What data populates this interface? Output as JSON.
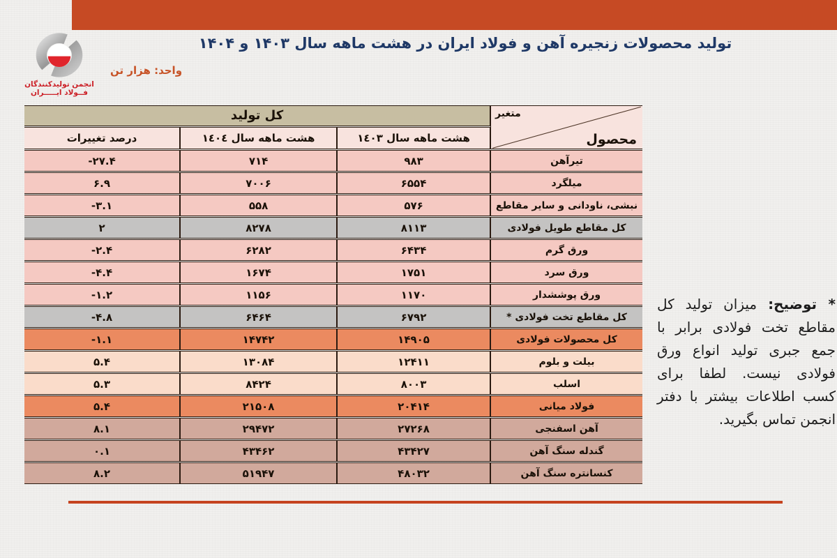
{
  "header": {
    "title": "تولید محصولات زنجیره آهن و فولاد ایران در هشت ماهه سال ۱۴۰۳ و ۱۴۰۴",
    "unit": "واحد: هزار تن"
  },
  "logo": {
    "line1": "انجمن تولیدکنندگان",
    "line2": "فــولاد ایـــــران"
  },
  "table": {
    "corner": {
      "top_label": "متغیر",
      "bottom_label": "محصول"
    },
    "group_header": "کل تولید",
    "columns": {
      "y1403": "هشت ماهه سال ١٤٠٣",
      "y1404": "هشت ماهه سال ١٤٠٤",
      "pct": "درصد تغییرات"
    },
    "rows": [
      {
        "product": "تیرآهن",
        "y1403": "۹۸۳",
        "y1404": "۷۱۴",
        "pct": "-۲۷.۴",
        "style": "pink"
      },
      {
        "product": "میلگرد",
        "y1403": "۶۵۵۴",
        "y1404": "۷۰۰۶",
        "pct": "۶.۹",
        "style": "pink"
      },
      {
        "product": "نبشی، ناودانی و سایر مقاطع",
        "y1403": "۵۷۶",
        "y1404": "۵۵۸",
        "pct": "-۳.۱",
        "style": "pink"
      },
      {
        "product": "کل مقاطع طویل فولادی",
        "y1403": "۸۱۱۳",
        "y1404": "۸۲۷۸",
        "pct": "۲",
        "style": "gray"
      },
      {
        "product": "ورق گرم",
        "y1403": "۶۴۳۴",
        "y1404": "۶۲۸۲",
        "pct": "-۲.۴",
        "style": "pink"
      },
      {
        "product": "ورق سرد",
        "y1403": "۱۷۵۱",
        "y1404": "۱۶۷۴",
        "pct": "-۴.۴",
        "style": "pink"
      },
      {
        "product": "ورق پوششدار",
        "y1403": "۱۱۷۰",
        "y1404": "۱۱۵۶",
        "pct": "-۱.۲",
        "style": "pink"
      },
      {
        "product": "کل مقاطع تخت فولادی *",
        "y1403": "۶۷۹۲",
        "y1404": "۶۴۶۴",
        "pct": "-۴.۸",
        "style": "gray"
      },
      {
        "product": "کل محصولات فولادی",
        "y1403": "۱۴۹۰۵",
        "y1404": "۱۴۷۴۲",
        "pct": "-۱.۱",
        "style": "orange"
      },
      {
        "product": "بیلت و بلوم",
        "y1403": "۱۲۴۱۱",
        "y1404": "۱۳۰۸۴",
        "pct": "۵.۴",
        "style": "peach"
      },
      {
        "product": "اسلب",
        "y1403": "۸۰۰۳",
        "y1404": "۸۴۲۴",
        "pct": "۵.۳",
        "style": "peach"
      },
      {
        "product": "فولاد میانی",
        "y1403": "۲۰۴۱۴",
        "y1404": "۲۱۵۰۸",
        "pct": "۵.۴",
        "style": "orange"
      },
      {
        "product": "آهن اسفنجی",
        "y1403": "۲۷۲۶۸",
        "y1404": "۲۹۴۷۲",
        "pct": "۸.۱",
        "style": "brown"
      },
      {
        "product": "گندله سنگ آهن",
        "y1403": "۴۳۴۲۷",
        "y1404": "۴۳۴۶۲",
        "pct": "۰.۱",
        "style": "brown"
      },
      {
        "product": "کنسانتره سنگ آهن",
        "y1403": "۴۸۰۳۲",
        "y1404": "۵۱۹۴۷",
        "pct": "۸.۲",
        "style": "brown"
      }
    ]
  },
  "note": {
    "label": "* توضیح:",
    "body": "میزان تولید کل مقاطع تخت فولادی برابر با جمع جبری تولید انواع ورق فولادی نیست. لطفا برای کسب اطلاعات بیشتر با دفتر انجمن تماس بگیرید."
  },
  "colors": {
    "top_bar": "#c64a24",
    "bottom_line": "#c5431f",
    "title_text": "#1e3866",
    "unit_text": "#c75327",
    "logo_text": "#cc2027",
    "group_header_bg": "#c7bea2",
    "sub_header_bg": "#f8e3de",
    "border": "#2a1a10",
    "row_styles": {
      "pink": "#f5c9c2",
      "gray": "#c4c3c2",
      "orange": "#eb8a60",
      "peach": "#fadcca",
      "brown": "#d1a99c"
    }
  },
  "chart_data": {
    "type": "table",
    "title": "تولید محصولات زنجیره آهن و فولاد ایران در هشت ماهه سال ۱۴۰۳ و ۱۴۰۴",
    "unit": "هزار تن",
    "columns": [
      "محصول",
      "هشت ماهه سال ۱۴۰۳",
      "هشت ماهه سال ۱۴۰۴",
      "درصد تغییرات"
    ],
    "rows": [
      [
        "تیرآهن",
        983,
        714,
        -27.4
      ],
      [
        "میلگرد",
        6554,
        7006,
        6.9
      ],
      [
        "نبشی، ناودانی و سایر مقاطع",
        576,
        558,
        -3.1
      ],
      [
        "کل مقاطع طویل فولادی",
        8113,
        8278,
        2
      ],
      [
        "ورق گرم",
        6434,
        6282,
        -2.4
      ],
      [
        "ورق سرد",
        1751,
        1674,
        -4.4
      ],
      [
        "ورق پوششدار",
        1170,
        1156,
        -1.2
      ],
      [
        "کل مقاطع تخت فولادی *",
        6792,
        6464,
        -4.8
      ],
      [
        "کل محصولات فولادی",
        14905,
        14742,
        -1.1
      ],
      [
        "بیلت و بلوم",
        12411,
        13084,
        5.4
      ],
      [
        "اسلب",
        8003,
        8424,
        5.3
      ],
      [
        "فولاد میانی",
        20414,
        21508,
        5.4
      ],
      [
        "آهن اسفنجی",
        27268,
        29472,
        8.1
      ],
      [
        "گندله سنگ آهن",
        43427,
        43462,
        0.1
      ],
      [
        "کنسانتره سنگ آهن",
        48032,
        51947,
        8.2
      ]
    ],
    "footnote": "* توضیح: میزان تولید کل مقاطع تخت فولادی برابر با جمع جبری تولید انواع ورق فولادی نیست. لطفا برای کسب اطلاعات بیشتر با دفتر انجمن تماس بگیرید."
  }
}
